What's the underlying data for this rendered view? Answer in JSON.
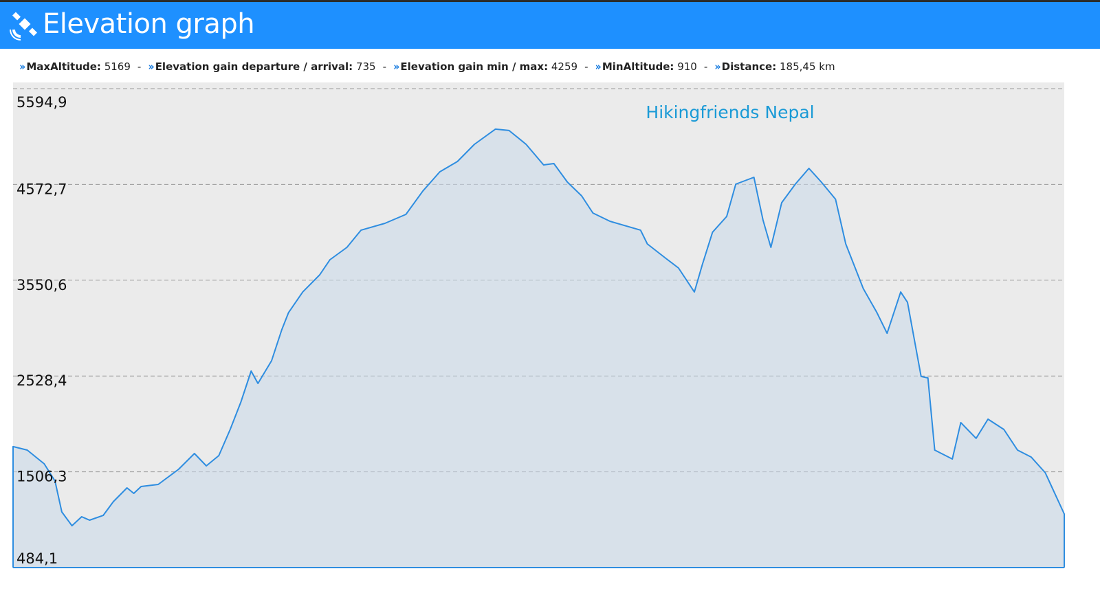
{
  "header": {
    "title": "Elevation graph"
  },
  "stats": {
    "separator": "-",
    "items": [
      {
        "label": "MaxAltitude:",
        "value": "5169"
      },
      {
        "label": "Elevation gain departure / arrival:",
        "value": "735"
      },
      {
        "label": "Elevation gain min / max:",
        "value": "4259"
      },
      {
        "label": "MinAltitude:",
        "value": "910"
      },
      {
        "label": "Distance:",
        "value": "185,45 km"
      }
    ]
  },
  "chart_data": {
    "type": "area",
    "annotation": "Hikingfriends Nepal",
    "color": "#2e8de0",
    "xlim": [
      0,
      185.45
    ],
    "ylim": [
      484.1,
      5594.9
    ],
    "yticks": [
      {
        "value": 484.1,
        "label": "484,1"
      },
      {
        "value": 1506.3,
        "label": "1506,3"
      },
      {
        "value": 2528.4,
        "label": "2528,4"
      },
      {
        "value": 3550.6,
        "label": "3550,6"
      },
      {
        "value": 4572.7,
        "label": "4572,7"
      },
      {
        "value": 5594.9,
        "label": "5594,9"
      }
    ],
    "grid": true,
    "x": [
      0,
      2.5,
      5.5,
      7.4,
      8.6,
      10.4,
      12.1,
      13.5,
      15.9,
      17.7,
      20.1,
      21.3,
      22.6,
      25.6,
      29.2,
      32.0,
      34.1,
      36.3,
      38.3,
      40.2,
      42.0,
      43.2,
      45.6,
      47.4,
      48.6,
      51.1,
      54.1,
      55.9,
      58.9,
      61.4,
      65.6,
      69.3,
      72.3,
      75.3,
      78.4,
      81.4,
      85.1,
      87.5,
      90.5,
      93.6,
      95.4,
      97.8,
      100.3,
      102.3,
      105.3,
      110.7,
      111.9,
      115.0,
      117.4,
      120.2,
      121.6,
      123.4,
      125.9,
      127.5,
      130.7,
      132.3,
      133.7,
      135.6,
      138.0,
      140.4,
      142.6,
      145.1,
      146.9,
      150.0,
      152.4,
      154.2,
      156.6,
      157.8,
      160.2,
      161.4,
      162.6,
      165.7,
      167.2,
      169.9,
      172.0,
      174.8,
      177.2,
      179.6,
      182.1,
      185.45
    ],
    "values": [
      1775,
      1738,
      1591,
      1408,
      1078,
      931,
      1027,
      990,
      1041,
      1188,
      1335,
      1276,
      1349,
      1371,
      1533,
      1701,
      1569,
      1679,
      1958,
      2251,
      2581,
      2449,
      2691,
      3021,
      3205,
      3425,
      3608,
      3769,
      3901,
      4085,
      4158,
      4253,
      4503,
      4708,
      4818,
      5001,
      5163,
      5148,
      5001,
      4781,
      4796,
      4598,
      4451,
      4268,
      4180,
      4085,
      3938,
      3791,
      3681,
      3425,
      3718,
      4063,
      4231,
      4576,
      4649,
      4194,
      3901,
      4378,
      4576,
      4744,
      4598,
      4415,
      3938,
      3461,
      3205,
      2984,
      3425,
      3315,
      2523,
      2508,
      1738,
      1643,
      2031,
      1863,
      2068,
      1958,
      1738,
      1664,
      1496,
      1056
    ]
  }
}
